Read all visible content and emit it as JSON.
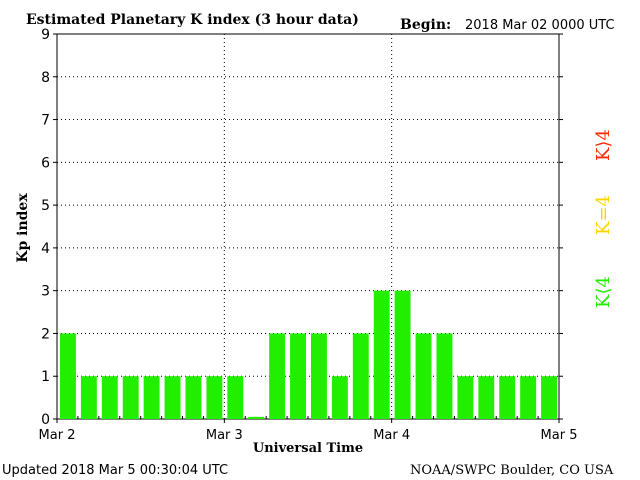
{
  "header": {
    "title": "Estimated Planetary K index (3 hour data)",
    "begin_label": "Begin:",
    "begin_value": "2018 Mar 02 0000 UTC"
  },
  "footer": {
    "updated": "Updated 2018 Mar  5 00:30:04 UTC",
    "source": "NOAA/SWPC Boulder, CO USA"
  },
  "legend": {
    "high": "K⟩4",
    "equal": "K=4",
    "low": "K⟨4",
    "high_color": "#ff2a00",
    "equal_color": "#ffd400",
    "low_color": "#22ee00"
  },
  "chart_data": {
    "type": "bar",
    "title": "Estimated Planetary K index (3 hour data)",
    "xlabel": "Universal Time",
    "ylabel": "Kp index",
    "ylim": [
      0,
      9
    ],
    "yticks": [
      "0",
      "1",
      "2",
      "3",
      "4",
      "5",
      "6",
      "7",
      "8",
      "9"
    ],
    "xtick_labels": [
      "Mar 2",
      "Mar 3",
      "Mar 4",
      "Mar 5"
    ],
    "bar_color": "#22ee00",
    "grid": "dotted, horizontal each 1 Kp and vertical at each day",
    "values": [
      2,
      1,
      1,
      1,
      1,
      1,
      1,
      1,
      1,
      0.05,
      2,
      2,
      2,
      1,
      2,
      3,
      3,
      2,
      2,
      1,
      1,
      1,
      1,
      1
    ]
  }
}
